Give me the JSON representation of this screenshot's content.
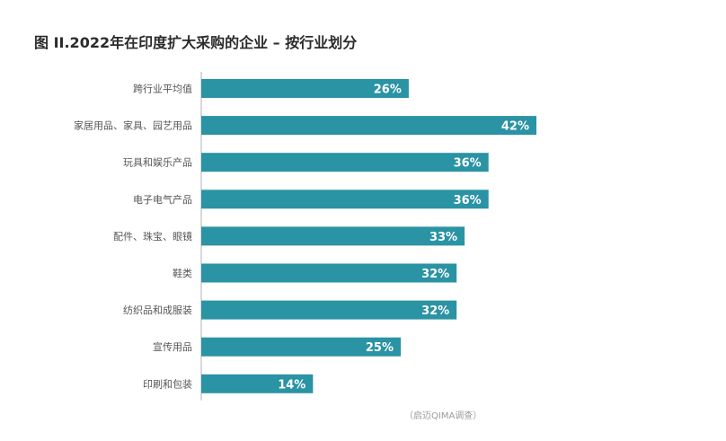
{
  "title": "图 II.2022年在印度扩大采购的企业 – 按行业划分",
  "source": "（启迈QIMA调查）",
  "colors": {
    "bar": "#2a93a4",
    "axis": "#b0b0b0"
  },
  "chart_data": {
    "type": "bar",
    "orientation": "horizontal",
    "title": "图 II.2022年在印度扩大采购的企业 – 按行业划分",
    "categories": [
      "跨行业平均值",
      "家居用品、家具、园艺用品",
      "玩具和娱乐产品",
      "电子电气产品",
      "配件、珠宝、眼镜",
      "鞋类",
      "纺织品和成服装",
      "宣传用品",
      "印刷和包装"
    ],
    "values": [
      26,
      42,
      36,
      36,
      33,
      32,
      32,
      25,
      14
    ],
    "value_labels": [
      "26%",
      "42%",
      "36%",
      "36%",
      "33%",
      "32%",
      "32%",
      "25%",
      "14%"
    ],
    "xlim": [
      0,
      42
    ],
    "grid": false,
    "legend": "none"
  }
}
